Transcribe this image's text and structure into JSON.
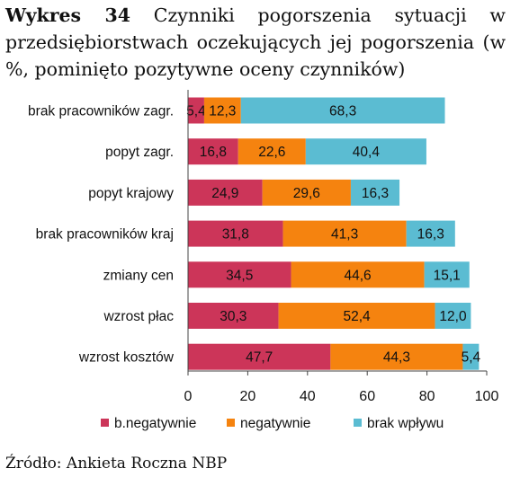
{
  "header": {
    "label": "Wykres 34",
    "text": "Czynniki pogorszenia sytuacji w przedsiębiorstwach oczekujących jej pogorszenia (w %, pominięto pozytywne oceny czynników)"
  },
  "footer": {
    "source": "Źródło: Ankieta Roczna NBP"
  },
  "chart_data": {
    "type": "bar",
    "orientation": "horizontal",
    "stacked": true,
    "categories": [
      "brak pracowników zagr.",
      "popyt zagr.",
      "popyt krajowy",
      "brak pracowników kraj",
      "zmiany cen",
      "wzrost płac",
      "wzrost kosztów"
    ],
    "series": [
      {
        "name": "b.negatywnie",
        "color": "#CC3559",
        "values": [
          5.4,
          16.8,
          24.9,
          31.8,
          34.5,
          30.3,
          47.7
        ],
        "labels": [
          "5,4",
          "16,8",
          "24,9",
          "31,8",
          "34,5",
          "30,3",
          "47,7"
        ]
      },
      {
        "name": "negatywnie",
        "color": "#F5830F",
        "values": [
          12.3,
          22.6,
          29.6,
          41.3,
          44.6,
          52.4,
          44.3
        ],
        "labels": [
          "12,3",
          "22,6",
          "29,6",
          "41,3",
          "44,6",
          "52,4",
          "44,3"
        ]
      },
      {
        "name": "brak wpływu",
        "color": "#5BBCD2",
        "values": [
          68.3,
          40.4,
          16.3,
          16.3,
          15.1,
          12.0,
          5.4
        ],
        "labels": [
          "68,3",
          "40,4",
          "16,3",
          "16,3",
          "15,1",
          "12,0",
          "5,4"
        ]
      }
    ],
    "xlim": [
      0,
      100
    ],
    "xticks": [
      "0",
      "20",
      "40",
      "60",
      "80",
      "100"
    ],
    "grid": false,
    "legend": "bottom"
  }
}
